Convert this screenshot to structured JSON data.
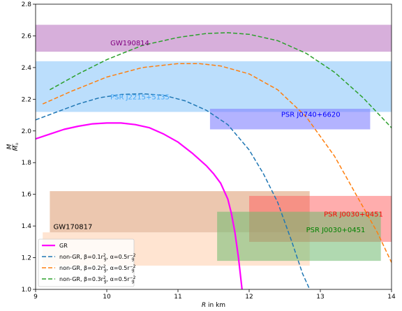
{
  "chart_data": {
    "type": "line",
    "xlabel_prefix": "R",
    "xlabel_suffix": " in km",
    "ylabel_num": "M",
    "ylabel_den": "M",
    "ylabel_den_sub": "⊙",
    "xlim": [
      9,
      14
    ],
    "ylim": [
      1.0,
      2.8
    ],
    "xticks": [
      "9",
      "10",
      "11",
      "12",
      "13",
      "14"
    ],
    "yticks": [
      "1.0",
      "1.2",
      "1.4",
      "1.6",
      "1.8",
      "2.0",
      "2.2",
      "2.4",
      "2.6",
      "2.8"
    ],
    "bands": [
      {
        "label": "GW190814",
        "x": [
          9,
          14
        ],
        "y": [
          2.5,
          2.67
        ],
        "color": "#b05fb8",
        "text_color": "#800080",
        "alpha": 0.5,
        "label_at": [
          10.05,
          2.54
        ]
      },
      {
        "label": "PSR J2215+5135",
        "x": [
          9,
          14
        ],
        "y": [
          2.12,
          2.44
        ],
        "color": "#8ec8fa",
        "text_color": "#42a5f5",
        "alpha": 0.6,
        "label_at": [
          10.05,
          2.2
        ]
      },
      {
        "label": "PSR J0740+6620",
        "x": [
          11.45,
          13.7
        ],
        "y": [
          2.01,
          2.14
        ],
        "color": "#8080ff",
        "text_color": "#0000ff",
        "alpha": 0.6,
        "label_at": [
          12.45,
          2.09
        ]
      },
      {
        "label": "GW170817",
        "x": [
          9.1,
          12.85
        ],
        "y": [
          1.15,
          1.36
        ],
        "color": "#ffc49a",
        "text_color": "#000000",
        "alpha": 0.45,
        "label_at": [
          9.25,
          1.38
        ]
      },
      {
        "label": "",
        "x": [
          9.2,
          12.85
        ],
        "y": [
          1.36,
          1.62
        ],
        "color": "#dfa27a",
        "text_color": "#000000",
        "alpha": 0.6,
        "label_at": null
      },
      {
        "label": "PSR J0030+0451",
        "x": [
          12.0,
          14.0
        ],
        "y": [
          1.3,
          1.59
        ],
        "color": "#ff5c5c",
        "text_color": "#ff0000",
        "alpha": 0.5,
        "label_at": [
          13.05,
          1.46
        ]
      },
      {
        "label": "PSR J0030+0451",
        "x": [
          11.55,
          13.85
        ],
        "y": [
          1.18,
          1.49
        ],
        "color": "#6fb96f",
        "text_color": "#008000",
        "alpha": 0.55,
        "label_at": [
          12.8,
          1.36
        ]
      }
    ],
    "series": [
      {
        "name": "GR",
        "color": "#ff00ff",
        "dash": "solid",
        "width": 2.2,
        "x": [
          9.0,
          9.2,
          9.4,
          9.6,
          9.8,
          10.0,
          10.2,
          10.4,
          10.6,
          10.8,
          11.0,
          11.2,
          11.4,
          11.5,
          11.6,
          11.7,
          11.75,
          11.8,
          11.85,
          11.9
        ],
        "y": [
          1.95,
          1.98,
          2.01,
          2.03,
          2.045,
          2.05,
          2.05,
          2.04,
          2.02,
          1.98,
          1.93,
          1.86,
          1.78,
          1.73,
          1.67,
          1.57,
          1.48,
          1.36,
          1.2,
          1.0
        ]
      },
      {
        "name_prefix": "non-GR, β=0.1r",
        "name_sub": "g",
        "name_sup": "2",
        "name_mid": ", α=0.5r",
        "name_sub2": "g",
        "name_sup2": "−2",
        "color": "#1f77b4",
        "dash": "6,3",
        "width": 1.5,
        "x": [
          9.0,
          9.3,
          9.6,
          9.9,
          10.2,
          10.5,
          10.8,
          11.1,
          11.4,
          11.7,
          12.0,
          12.2,
          12.4,
          12.6,
          12.75,
          12.85
        ],
        "y": [
          2.07,
          2.12,
          2.17,
          2.21,
          2.23,
          2.235,
          2.225,
          2.19,
          2.13,
          2.04,
          1.88,
          1.73,
          1.55,
          1.3,
          1.1,
          1.0
        ]
      },
      {
        "name_prefix": "non-GR, β=0.2r",
        "name_sub": "g",
        "name_sup": "2",
        "name_mid": ", α=0.5r",
        "name_sub2": "g",
        "name_sup2": "−2",
        "color": "#ff7f0e",
        "dash": "6,3",
        "width": 1.5,
        "x": [
          9.1,
          9.5,
          10.0,
          10.5,
          11.0,
          11.3,
          11.6,
          12.0,
          12.4,
          12.8,
          13.2,
          13.5,
          13.8,
          14.0
        ],
        "y": [
          2.17,
          2.25,
          2.34,
          2.4,
          2.425,
          2.425,
          2.41,
          2.36,
          2.26,
          2.09,
          1.84,
          1.6,
          1.36,
          1.17
        ]
      },
      {
        "name_prefix": "non-GR, β=0.3r",
        "name_sub": "g",
        "name_sup": "2",
        "name_mid": ", α=0.5r",
        "name_sub2": "g",
        "name_sup2": "−2",
        "color": "#2ca02c",
        "dash": "6,3",
        "width": 1.5,
        "x": [
          9.2,
          9.6,
          10.0,
          10.5,
          11.0,
          11.4,
          11.7,
          12.0,
          12.4,
          12.8,
          13.2,
          13.6,
          14.0
        ],
        "y": [
          2.26,
          2.36,
          2.45,
          2.54,
          2.59,
          2.615,
          2.62,
          2.61,
          2.57,
          2.49,
          2.37,
          2.21,
          2.02
        ]
      }
    ],
    "legend": {
      "position": "lower-left",
      "items": [
        "GR",
        "non-GR, β=0.1",
        "non-GR, β=0.2",
        "non-GR, β=0.3"
      ]
    },
    "grid": false
  }
}
